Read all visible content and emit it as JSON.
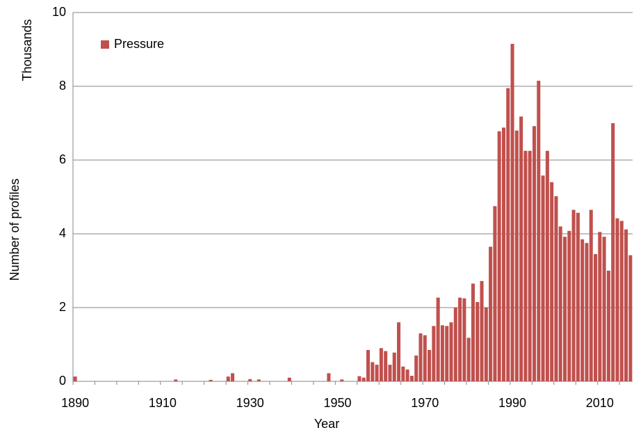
{
  "chart_data": {
    "type": "bar",
    "y_label": "Number of profiles",
    "y_unit": "Thousands",
    "x_label": "Year",
    "categories": [
      "1890",
      null,
      null,
      null,
      null,
      null,
      null,
      null,
      null,
      null,
      null,
      null,
      null,
      null,
      null,
      null,
      null,
      null,
      null,
      null,
      "1910",
      null,
      null,
      null,
      null,
      null,
      null,
      null,
      null,
      null,
      null,
      null,
      null,
      null,
      null,
      null,
      null,
      null,
      null,
      null,
      "1930",
      null,
      null,
      null,
      null,
      null,
      null,
      null,
      null,
      null,
      null,
      null,
      null,
      null,
      null,
      null,
      null,
      null,
      null,
      null,
      "1950",
      null,
      null,
      null,
      null,
      null,
      null,
      null,
      null,
      null,
      null,
      null,
      null,
      null,
      null,
      null,
      null,
      null,
      null,
      null,
      "1970",
      null,
      null,
      null,
      null,
      null,
      null,
      null,
      null,
      null,
      null,
      null,
      null,
      null,
      null,
      null,
      null,
      null,
      null,
      null,
      "1990",
      null,
      null,
      null,
      null,
      null,
      null,
      null,
      null,
      null,
      null,
      null,
      null,
      null,
      null,
      null,
      null,
      null,
      null,
      null,
      "2010",
      null,
      null,
      null,
      null,
      null,
      null,
      null
    ],
    "series": [
      {
        "name": "Pressure",
        "color": "#c0504d",
        "values": [
          0.13,
          0,
          0,
          0,
          0,
          0,
          0,
          0,
          0,
          0,
          0,
          0,
          0,
          0,
          0,
          0,
          0,
          0,
          0,
          0,
          0,
          0,
          0,
          0.05,
          0,
          0,
          0,
          0,
          0,
          0,
          0,
          0.04,
          0,
          0,
          0,
          0.13,
          0.22,
          0,
          0,
          0,
          0.06,
          0,
          0.05,
          0,
          0,
          0,
          0,
          0,
          0,
          0.1,
          0,
          0,
          0,
          0,
          0,
          0,
          0,
          0,
          0.22,
          0,
          0,
          0.05,
          0,
          0,
          0,
          0.14,
          0.1,
          0.85,
          0.52,
          0.45,
          0.9,
          0.82,
          0.45,
          0.78,
          1.6,
          0.4,
          0.32,
          0.15,
          0.7,
          1.3,
          1.25,
          0.85,
          1.5,
          2.27,
          1.52,
          1.5,
          1.6,
          2.0,
          2.27,
          2.25,
          1.18,
          2.65,
          2.15,
          2.72,
          2.0,
          3.65,
          4.75,
          6.78,
          6.88,
          7.95,
          9.15,
          6.8,
          7.18,
          6.25,
          6.25,
          6.92,
          8.15,
          5.58,
          6.25,
          5.4,
          5.02,
          4.2,
          3.92,
          4.08,
          4.65,
          4.57,
          3.85,
          3.75,
          4.65,
          3.45,
          4.05,
          3.92,
          3.0,
          7.0,
          4.42,
          4.35,
          4.12,
          3.42
        ]
      }
    ],
    "ylim": [
      0,
      10
    ],
    "yticks": [
      0,
      2,
      4,
      6,
      8,
      10
    ],
    "grid": true,
    "legend": "top-left"
  }
}
